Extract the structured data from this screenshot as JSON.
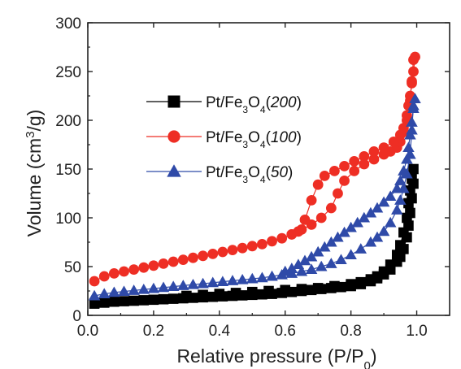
{
  "chart_data": {
    "type": "scatter",
    "xlabel": "Relative pressure (P/P0)",
    "xlabel_main": "Relative pressure (P/P",
    "xlabel_sub": "0",
    "xlabel_close": ")",
    "ylabel_main": "Volume (cm",
    "ylabel_sup": "3",
    "ylabel_close": "/g)",
    "xlim": [
      0.0,
      1.1
    ],
    "ylim": [
      0,
      300
    ],
    "xticks": [
      0.0,
      0.2,
      0.4,
      0.6,
      0.8,
      1.0
    ],
    "xtick_labels": [
      "0.0",
      "0.2",
      "0.4",
      "0.6",
      "0.8",
      "1.0"
    ],
    "yticks": [
      0,
      50,
      100,
      150,
      200,
      250,
      300
    ],
    "ytick_labels": [
      "0",
      "50",
      "100",
      "150",
      "200",
      "250",
      "300"
    ],
    "grid": false,
    "legend_placement": "upper-left",
    "series": [
      {
        "name": "Pt/Fe3O4(200)",
        "label_parts": {
          "base": "Pt/Fe",
          "sub1": "3",
          "mid": "O",
          "sub2": "4",
          "paren": "(",
          "italic": "200",
          "close": ")"
        },
        "color": "#000000",
        "marker": "square",
        "adsorption": {
          "x": [
            0.02,
            0.05,
            0.08,
            0.11,
            0.14,
            0.17,
            0.2,
            0.23,
            0.26,
            0.29,
            0.32,
            0.35,
            0.38,
            0.41,
            0.44,
            0.47,
            0.5,
            0.53,
            0.56,
            0.59,
            0.62,
            0.65,
            0.68,
            0.71,
            0.74,
            0.77,
            0.8,
            0.83,
            0.86,
            0.88,
            0.9,
            0.92,
            0.94,
            0.95,
            0.96,
            0.97,
            0.975,
            0.98,
            0.985,
            0.99
          ],
          "y": [
            12,
            13,
            14,
            14.5,
            15,
            15.5,
            16,
            16.5,
            17,
            17.5,
            18,
            18.5,
            19,
            19.5,
            20,
            20.5,
            21,
            21.5,
            22,
            23,
            24,
            25,
            26,
            27,
            28,
            29,
            30,
            32,
            35,
            38,
            42,
            47,
            55,
            60,
            68,
            80,
            92,
            105,
            120,
            135
          ]
        },
        "desorption": {
          "x": [
            0.99,
            0.985,
            0.98,
            0.975,
            0.97,
            0.96,
            0.95,
            0.94,
            0.92,
            0.9,
            0.88,
            0.86,
            0.83,
            0.8,
            0.75,
            0.7,
            0.65,
            0.6,
            0.55,
            0.5,
            0.45,
            0.4,
            0.35,
            0.3
          ],
          "y": [
            150,
            140,
            128,
            115,
            100,
            85,
            72,
            62,
            52,
            45,
            40,
            37,
            34,
            32,
            30,
            28,
            27,
            26,
            25,
            24,
            23,
            22,
            21,
            20
          ]
        }
      },
      {
        "name": "Pt/Fe3O4(100)",
        "label_parts": {
          "base": "Pt/Fe",
          "sub1": "3",
          "mid": "O",
          "sub2": "4",
          "paren": "(",
          "italic": "100",
          "close": ")"
        },
        "color": "#ee2e24",
        "marker": "circle",
        "adsorption": {
          "x": [
            0.02,
            0.05,
            0.08,
            0.11,
            0.14,
            0.17,
            0.2,
            0.23,
            0.26,
            0.29,
            0.32,
            0.35,
            0.38,
            0.41,
            0.44,
            0.47,
            0.5,
            0.53,
            0.56,
            0.59,
            0.62,
            0.65,
            0.68,
            0.71,
            0.74,
            0.76,
            0.78,
            0.81,
            0.84,
            0.87,
            0.9,
            0.92,
            0.94,
            0.95,
            0.96,
            0.97,
            0.98,
            0.985,
            0.99
          ],
          "y": [
            35,
            40,
            43,
            45,
            47,
            49,
            51,
            53,
            55,
            57,
            59,
            61,
            63,
            65,
            67,
            69,
            71,
            73,
            76,
            79,
            83,
            88,
            93,
            100,
            110,
            125,
            138,
            148,
            155,
            160,
            165,
            168,
            172,
            178,
            188,
            200,
            220,
            240,
            262
          ]
        },
        "desorption": {
          "x": [
            0.995,
            0.99,
            0.985,
            0.98,
            0.975,
            0.97,
            0.96,
            0.95,
            0.93,
            0.9,
            0.87,
            0.84,
            0.81,
            0.78,
            0.75,
            0.72,
            0.7,
            0.68,
            0.66,
            0.64,
            0.62
          ],
          "y": [
            265,
            250,
            238,
            225,
            215,
            205,
            192,
            185,
            178,
            172,
            168,
            163,
            158,
            153,
            148,
            143,
            134,
            118,
            98,
            86,
            83
          ]
        }
      },
      {
        "name": "Pt/Fe3O4(50)",
        "label_parts": {
          "base": "Pt/Fe",
          "sub1": "3",
          "mid": "O",
          "sub2": "4",
          "paren": "(",
          "italic": "50",
          "close": ")"
        },
        "color": "#2f4aa8",
        "marker": "triangle",
        "adsorption": {
          "x": [
            0.02,
            0.05,
            0.08,
            0.11,
            0.14,
            0.17,
            0.2,
            0.23,
            0.26,
            0.29,
            0.32,
            0.35,
            0.38,
            0.41,
            0.44,
            0.47,
            0.5,
            0.53,
            0.56,
            0.59,
            0.62,
            0.65,
            0.68,
            0.71,
            0.74,
            0.77,
            0.8,
            0.83,
            0.86,
            0.88,
            0.9,
            0.92,
            0.94,
            0.95,
            0.96,
            0.97,
            0.98,
            0.985,
            0.99
          ],
          "y": [
            20,
            22,
            23.5,
            24.5,
            25.5,
            26.5,
            27.5,
            28.5,
            29.5,
            30.5,
            31.5,
            32.5,
            33.5,
            34.5,
            35.5,
            36.5,
            37.5,
            38.5,
            40,
            41.5,
            43,
            45,
            47,
            50,
            53,
            57,
            62,
            68,
            75,
            80,
            86,
            95,
            108,
            118,
            130,
            145,
            165,
            190,
            215
          ]
        },
        "desorption": {
          "x": [
            0.995,
            0.99,
            0.985,
            0.98,
            0.975,
            0.97,
            0.96,
            0.95,
            0.94,
            0.92,
            0.9,
            0.88,
            0.86,
            0.84,
            0.82,
            0.8,
            0.78,
            0.76,
            0.74,
            0.72,
            0.7,
            0.68,
            0.66,
            0.64,
            0.62,
            0.6
          ],
          "y": [
            222,
            212,
            198,
            185,
            172,
            160,
            148,
            138,
            130,
            122,
            116,
            110,
            105,
            100,
            95,
            90,
            85,
            80,
            75,
            70,
            65,
            60,
            56,
            52,
            48,
            45
          ]
        }
      }
    ]
  }
}
